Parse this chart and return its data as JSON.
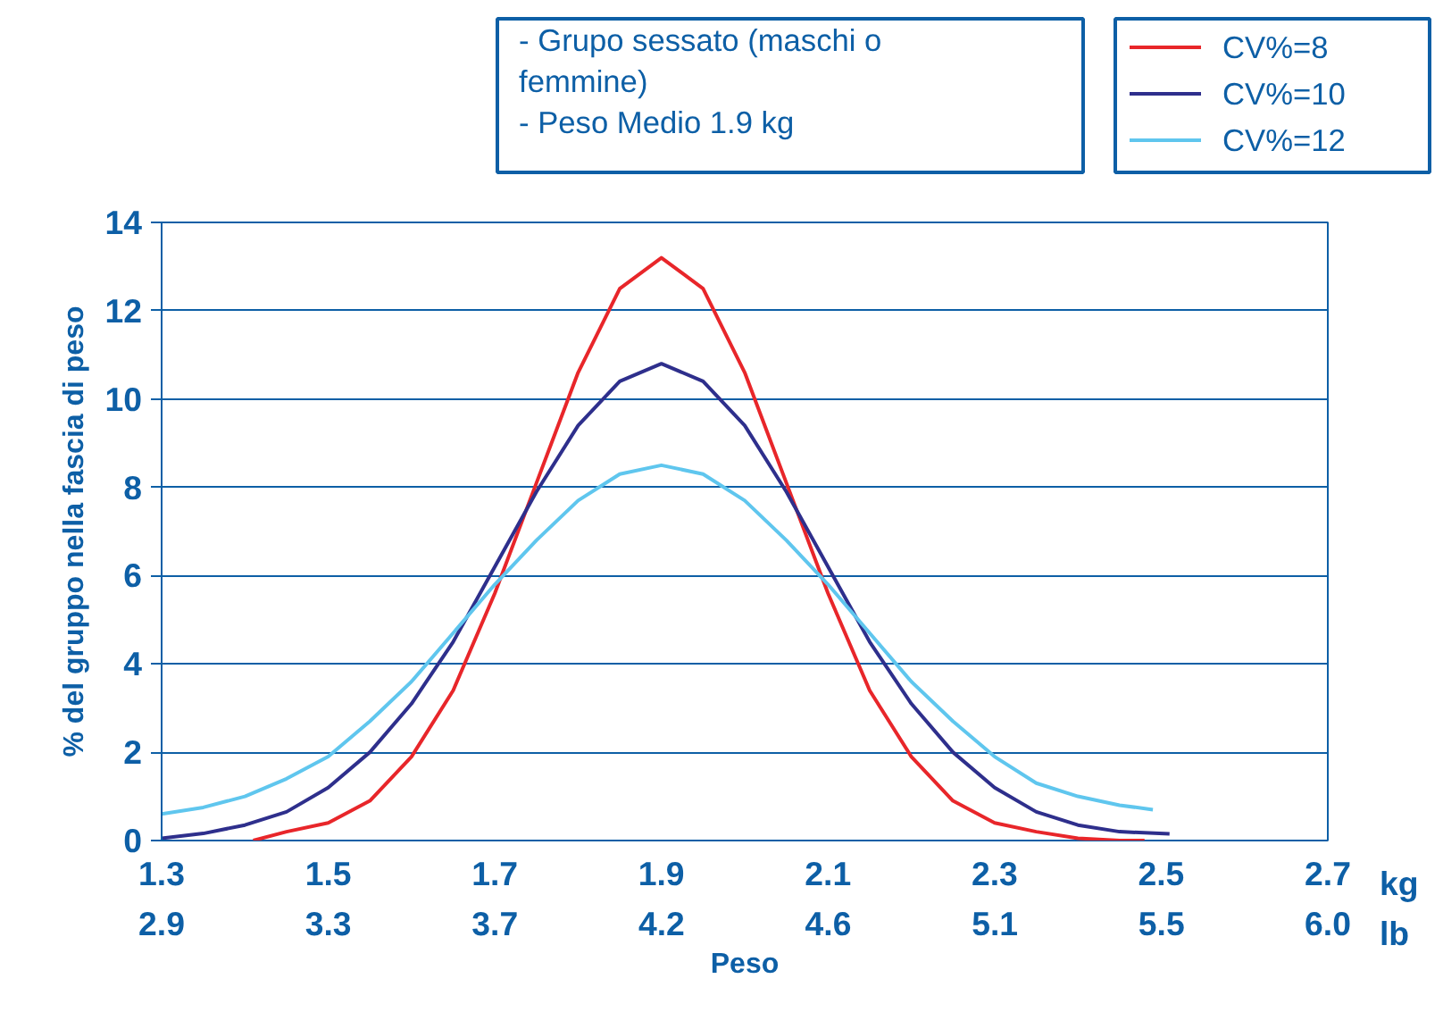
{
  "chart_data": {
    "type": "line",
    "xlabel": "Peso",
    "ylabel": "% del gruppo nella fascia di peso",
    "annotations": [
      "- Grupo sessato (maschi o femmine)",
      "- Peso Medio 1.9 kg",
      "kg",
      "lb"
    ],
    "xlim": [
      1.3,
      2.7
    ],
    "xticks": [
      1.3,
      1.5,
      1.7,
      1.9,
      2.1,
      2.3,
      2.5,
      2.7
    ],
    "x2lim": [
      2.866,
      5.952
    ],
    "x2ticks": [
      {
        "value": 2.866,
        "label": "2.9"
      },
      {
        "value": 3.307,
        "label": "3.3"
      },
      {
        "value": 3.748,
        "label": "3.7"
      },
      {
        "value": 4.189,
        "label": "4.2"
      },
      {
        "value": 4.63,
        "label": "4.6"
      },
      {
        "value": 5.071,
        "label": "5.1"
      },
      {
        "value": 5.512,
        "label": "5.5"
      },
      {
        "value": 5.952,
        "label": "6.0"
      }
    ],
    "ylim": [
      0,
      14
    ],
    "yticks": [
      0,
      2,
      4,
      6,
      8,
      10,
      12,
      14
    ],
    "grid": "y",
    "legend": "top right",
    "line_style": "solid",
    "marker": "none",
    "series": [
      {
        "name": "CV%=8",
        "color": "#e8262a",
        "x": [
          1.41,
          1.45,
          1.5,
          1.55,
          1.6,
          1.65,
          1.7,
          1.75,
          1.8,
          1.85,
          1.9,
          1.95,
          2.0,
          2.05,
          2.1,
          2.15,
          2.2,
          2.25,
          2.3,
          2.35,
          2.4,
          2.45,
          2.48
        ],
        "values": [
          0,
          0.2,
          0.4,
          0.9,
          1.9,
          3.4,
          5.6,
          8.1,
          10.6,
          12.5,
          13.2,
          12.5,
          10.6,
          8.1,
          5.6,
          3.4,
          1.9,
          0.9,
          0.4,
          0.2,
          0.05,
          0,
          0
        ]
      },
      {
        "name": "CV%=10",
        "color": "#2e2f8c",
        "x": [
          1.3,
          1.35,
          1.4,
          1.45,
          1.5,
          1.55,
          1.6,
          1.65,
          1.7,
          1.75,
          1.8,
          1.85,
          1.9,
          1.95,
          2.0,
          2.05,
          2.1,
          2.15,
          2.2,
          2.25,
          2.3,
          2.35,
          2.4,
          2.45,
          2.51
        ],
        "values": [
          0.05,
          0.16,
          0.35,
          0.65,
          1.2,
          2.0,
          3.1,
          4.5,
          6.2,
          7.9,
          9.4,
          10.4,
          10.8,
          10.4,
          9.4,
          7.9,
          6.2,
          4.5,
          3.1,
          2.0,
          1.2,
          0.65,
          0.35,
          0.2,
          0.15
        ]
      },
      {
        "name": "CV%=12",
        "color": "#5fc6ee",
        "x": [
          1.3,
          1.35,
          1.4,
          1.45,
          1.5,
          1.55,
          1.6,
          1.65,
          1.7,
          1.75,
          1.8,
          1.85,
          1.9,
          1.95,
          2.0,
          2.05,
          2.1,
          2.15,
          2.2,
          2.25,
          2.3,
          2.35,
          2.4,
          2.45,
          2.49
        ],
        "values": [
          0.6,
          0.75,
          1.0,
          1.4,
          1.9,
          2.7,
          3.6,
          4.7,
          5.8,
          6.8,
          7.7,
          8.3,
          8.5,
          8.3,
          7.7,
          6.8,
          5.8,
          4.7,
          3.6,
          2.7,
          1.9,
          1.3,
          1.0,
          0.8,
          0.7
        ]
      }
    ]
  }
}
